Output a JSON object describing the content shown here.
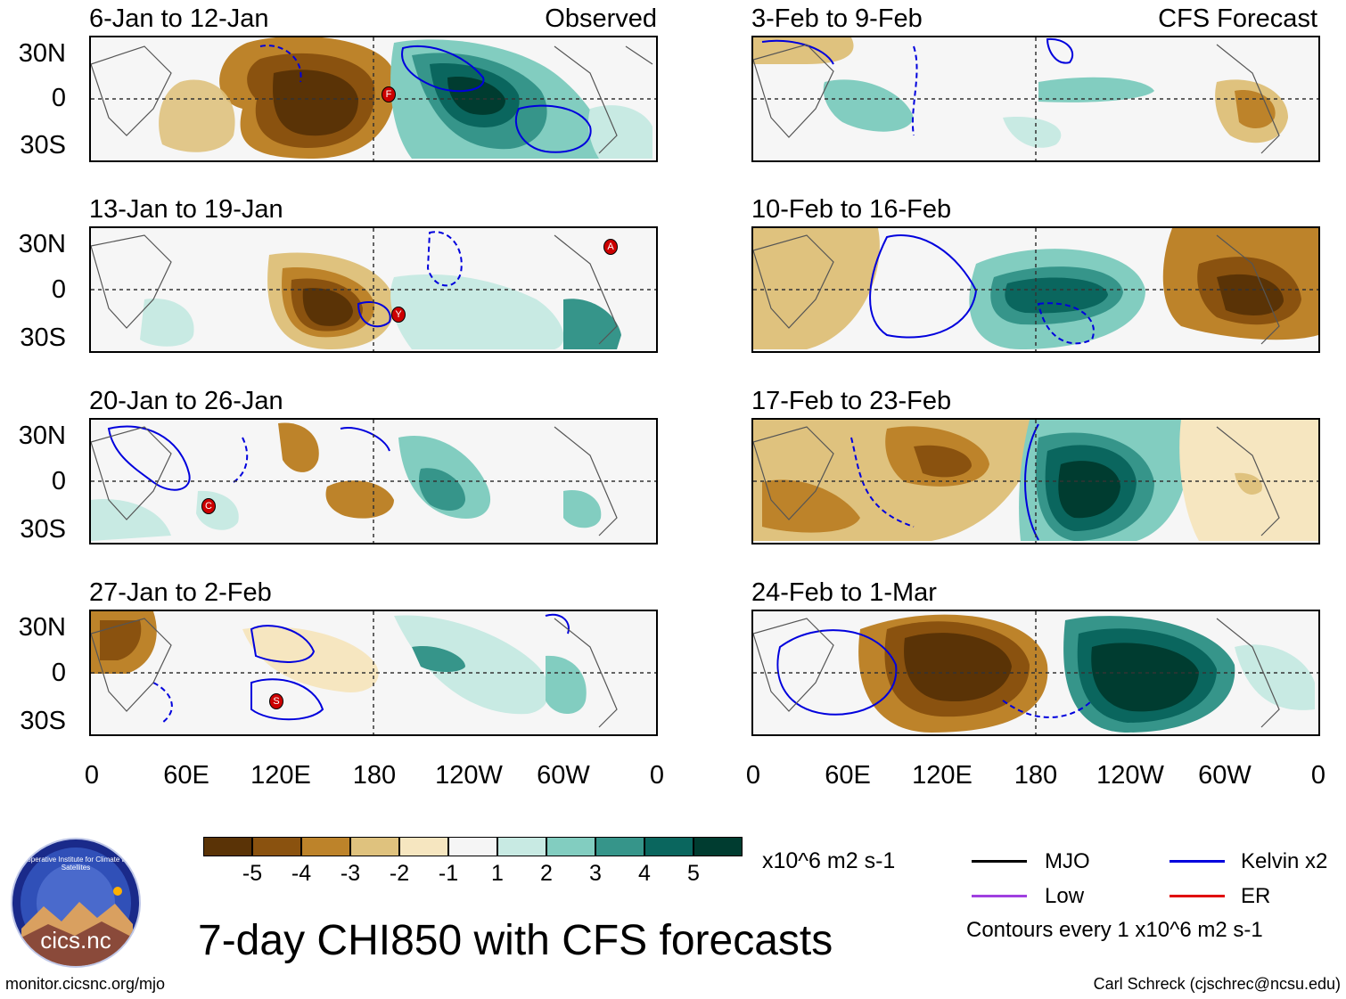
{
  "title": "7-day CHI850 with CFS forecasts",
  "left_column_label": "Observed",
  "right_column_label": "CFS Forecast",
  "lat_labels": [
    "30N",
    "0",
    "30S"
  ],
  "lon_labels": [
    "0",
    "60E",
    "120E",
    "180",
    "120W",
    "60W",
    "0"
  ],
  "panels": [
    {
      "date": "6-Jan to 12-Jan"
    },
    {
      "date": "13-Jan to 19-Jan"
    },
    {
      "date": "20-Jan to 26-Jan"
    },
    {
      "date": "27-Jan to 2-Feb"
    },
    {
      "date": "3-Feb to 9-Feb"
    },
    {
      "date": "10-Feb to 16-Feb"
    },
    {
      "date": "17-Feb to 23-Feb"
    },
    {
      "date": "24-Feb to 1-Mar"
    }
  ],
  "colorbar": {
    "units": "x10^6 m2 s-1",
    "ticks": [
      "-5",
      "-4",
      "-3",
      "-2",
      "-1",
      "1",
      "2",
      "3",
      "4",
      "5"
    ],
    "colors": [
      "#5a3306",
      "#8a520f",
      "#bd832a",
      "#dfc27e",
      "#f6e6c0",
      "#f5f5f5",
      "#c8eae3",
      "#82cdc0",
      "#36958a",
      "#0a665e",
      "#003c30"
    ]
  },
  "legend": {
    "mjo": "MJO",
    "kelvin": "Kelvin x2",
    "low": "Low",
    "er": "ER",
    "contours": "Contours every 1 x10^6 m2 s-1",
    "colors": {
      "mjo": "#000000",
      "kelvin": "#0000dd",
      "low": "#a040e0",
      "er": "#e00000"
    }
  },
  "wave_markers": [
    {
      "letter": "F"
    },
    {
      "letter": "A"
    },
    {
      "letter": "Y"
    },
    {
      "letter": "C"
    },
    {
      "letter": "S"
    }
  ],
  "logo_text": "cics.nc",
  "logo_ring_text": "Cooperative Institute for Climate and Satellites",
  "footer_left": "monitor.cicsnc.org/mjo",
  "footer_right": "Carl Schreck (cjschrec@ncsu.edu)"
}
